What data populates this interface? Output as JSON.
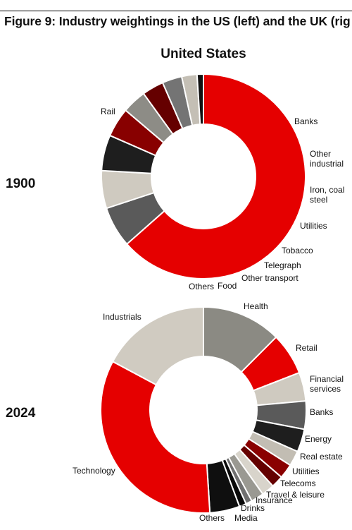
{
  "figure_title": "Figure 9: Industry weightings in the US (left) and the UK (rig",
  "panel_title": "United States",
  "chart_data": [
    {
      "type": "pie",
      "donut": true,
      "year": "1900",
      "start": "12 o'clock",
      "direction": "clockwise",
      "slices": [
        {
          "label": "Rail",
          "value": 63,
          "color": "#e50000"
        },
        {
          "label": "Banks",
          "value": 6.4,
          "color": "#5a5a5a"
        },
        {
          "label": "Other industrial",
          "value": 5.9,
          "color": "#cfcac0"
        },
        {
          "label": "Iron, coal steel",
          "value": 5.6,
          "color": "#1e1e1e"
        },
        {
          "label": "Utilities",
          "value": 4.6,
          "color": "#880000"
        },
        {
          "label": "Tobacco",
          "value": 3.8,
          "color": "#8d8c86"
        },
        {
          "label": "Telegraph",
          "value": 3.4,
          "color": "#650000"
        },
        {
          "label": "Other transport",
          "value": 3.1,
          "color": "#747474"
        },
        {
          "label": "Food",
          "value": 2.4,
          "color": "#c4bfb5"
        },
        {
          "label": "Others",
          "value": 1.0,
          "color": "#101010"
        }
      ]
    },
    {
      "type": "pie",
      "donut": true,
      "year": "2024",
      "start": "12 o'clock",
      "direction": "clockwise",
      "slices": [
        {
          "label": "Health",
          "value": 12.5,
          "color": "#8b8a83"
        },
        {
          "label": "Retail",
          "value": 6.6,
          "color": "#e50000"
        },
        {
          "label": "Financial services",
          "value": 4.5,
          "color": "#cfcac0"
        },
        {
          "label": "Banks",
          "value": 4.4,
          "color": "#5a5a5a"
        },
        {
          "label": "Energy",
          "value": 3.6,
          "color": "#1e1e1e"
        },
        {
          "label": "Real estate",
          "value": 2.4,
          "color": "#c2bdb3"
        },
        {
          "label": "Utilities",
          "value": 2.3,
          "color": "#8a0000"
        },
        {
          "label": "Telecoms",
          "value": 1.9,
          "color": "#650000"
        },
        {
          "label": "Travel & leisure",
          "value": 2.0,
          "color": "#d8d4cb"
        },
        {
          "label": "Insurance",
          "value": 2.0,
          "color": "#9a9992"
        },
        {
          "label": "Media",
          "value": 1.0,
          "color": "#707070"
        },
        {
          "label": "Drinks",
          "value": 1.1,
          "color": "#0a0a0a"
        },
        {
          "label": "Others",
          "value": 4.7,
          "color": "#0f0f0f"
        },
        {
          "label": "Technology",
          "value": 33.8,
          "color": "#e50000"
        },
        {
          "label": "Industrials",
          "value": 17.2,
          "color": "#d0cbc1"
        }
      ]
    }
  ]
}
